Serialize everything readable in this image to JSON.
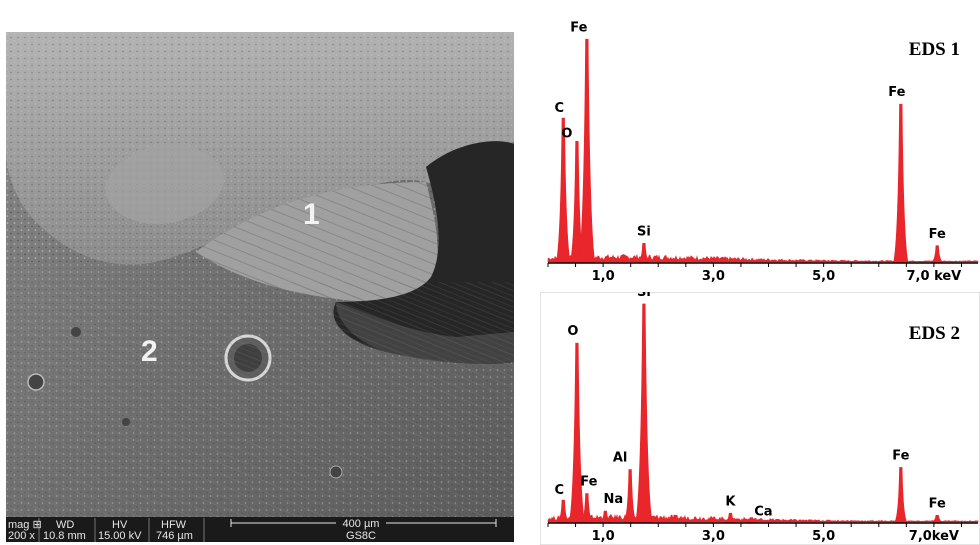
{
  "sem_image": {
    "region_labels": [
      "1",
      "2"
    ],
    "info_bar": {
      "headers": [
        "mag ⊞",
        "WD",
        "HV",
        "HFW"
      ],
      "values": [
        "200 x",
        "10.8 mm",
        "15.00 kV",
        "746 µm"
      ],
      "scale_label": "400 µm",
      "sample_id": "GS8C"
    }
  },
  "chart_data": [
    {
      "type": "bar",
      "title": "EDS 1",
      "xunit": "keV",
      "xlim": [
        0.0,
        7.8
      ],
      "ylim": [
        0,
        100
      ],
      "xticks": [
        {
          "value": 1.0,
          "label": "1,0"
        },
        {
          "value": 3.0,
          "label": "3,0"
        },
        {
          "value": 5.0,
          "label": "5,0"
        },
        {
          "value": 7.0,
          "label": "7,0 keV"
        }
      ],
      "peaks": [
        {
          "element": "C",
          "energy": 0.277,
          "intensity": 62
        },
        {
          "element": "O",
          "energy": 0.525,
          "intensity": 52
        },
        {
          "element": "Fe",
          "energy": 0.705,
          "intensity": 96
        },
        {
          "element": "Si",
          "energy": 1.74,
          "intensity": 8
        },
        {
          "element": "Fe",
          "energy": 6.4,
          "intensity": 68
        },
        {
          "element": "Fe",
          "energy": 7.06,
          "intensity": 7
        }
      ],
      "color": "#e8262b"
    },
    {
      "type": "bar",
      "title": "EDS 2",
      "xunit": "keV",
      "xlim": [
        0.0,
        7.8
      ],
      "ylim": [
        0,
        100
      ],
      "xticks": [
        {
          "value": 1.0,
          "label": "1,0"
        },
        {
          "value": 3.0,
          "label": "3,0"
        },
        {
          "value": 5.0,
          "label": "5,0"
        },
        {
          "value": 7.0,
          "label": "7,0keV"
        }
      ],
      "peaks": [
        {
          "element": "C",
          "energy": 0.277,
          "intensity": 10
        },
        {
          "element": "O",
          "energy": 0.525,
          "intensity": 82
        },
        {
          "element": "Fe",
          "energy": 0.705,
          "intensity": 13
        },
        {
          "element": "Na",
          "energy": 1.04,
          "intensity": 5
        },
        {
          "element": "Al",
          "energy": 1.49,
          "intensity": 24
        },
        {
          "element": "Si",
          "energy": 1.74,
          "intensity": 100
        },
        {
          "element": "K",
          "energy": 3.31,
          "intensity": 4
        },
        {
          "element": "Ca",
          "energy": 3.69,
          "intensity": 2
        },
        {
          "element": "Fe",
          "energy": 6.4,
          "intensity": 25
        },
        {
          "element": "Fe",
          "energy": 7.06,
          "intensity": 3
        }
      ],
      "color": "#e8262b"
    }
  ]
}
